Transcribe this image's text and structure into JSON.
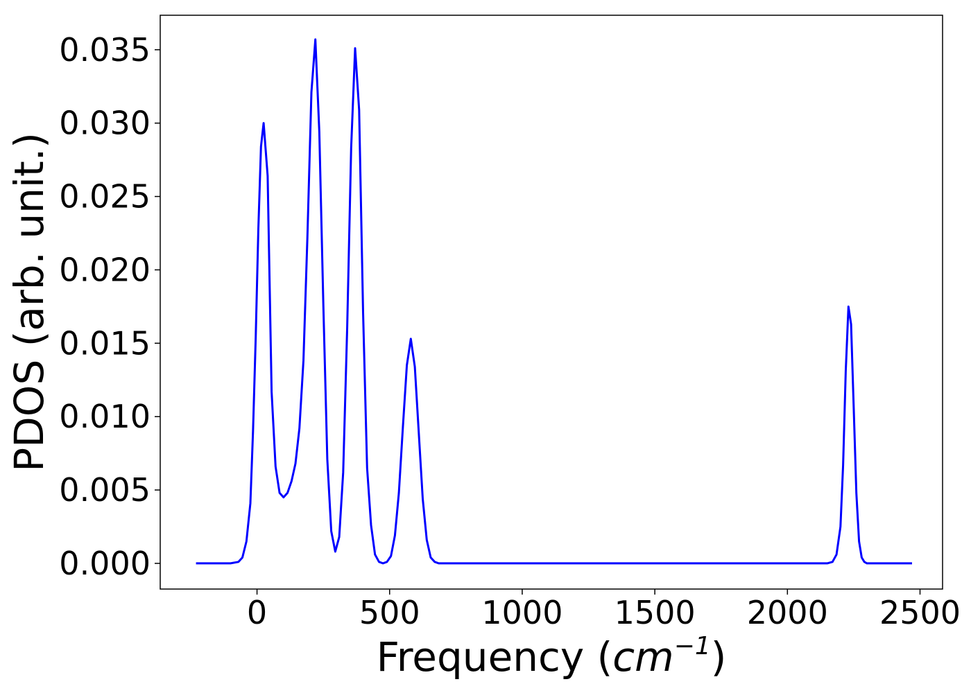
{
  "chart_data": {
    "type": "line",
    "xlabel_prefix": "Frequency (",
    "xlabel_unit": "cm",
    "xlabel_exp": "−1",
    "xlabel_suffix": ")",
    "ylabel": "PDOS (arb. unit.)",
    "xlim": [
      -365,
      2585
    ],
    "ylim": [
      -0.00175,
      0.03735
    ],
    "xticks": [
      0,
      500,
      1000,
      1500,
      2000,
      2500
    ],
    "xtick_labels": [
      "0",
      "500",
      "1000",
      "1500",
      "2000",
      "2500"
    ],
    "yticks": [
      0.0,
      0.005,
      0.01,
      0.015,
      0.02,
      0.025,
      0.03,
      0.035
    ],
    "ytick_labels": [
      "0.000",
      "0.005",
      "0.010",
      "0.015",
      "0.020",
      "0.025",
      "0.030",
      "0.035"
    ],
    "grid": false,
    "series": [
      {
        "color": "#0000ff",
        "x": [
          -230,
          -200,
          -150,
          -100,
          -70,
          -55,
          -40,
          -25,
          -15,
          -5,
          5,
          15,
          25,
          40,
          55,
          70,
          85,
          100,
          115,
          130,
          145,
          160,
          175,
          190,
          205,
          220,
          235,
          250,
          265,
          280,
          295,
          310,
          325,
          340,
          355,
          370,
          385,
          400,
          415,
          430,
          445,
          460,
          475,
          490,
          505,
          520,
          535,
          550,
          565,
          580,
          595,
          610,
          625,
          640,
          655,
          670,
          685,
          700,
          1000,
          1500,
          2000,
          2150,
          2170,
          2185,
          2200,
          2210,
          2220,
          2230,
          2240,
          2250,
          2260,
          2270,
          2280,
          2290,
          2300,
          2315,
          2330,
          2350,
          2470
        ],
        "y": [
          0.0,
          0.0,
          0.0,
          0.0,
          0.0001,
          0.0004,
          0.0015,
          0.0041,
          0.009,
          0.0154,
          0.0228,
          0.0284,
          0.03,
          0.0264,
          0.0117,
          0.0066,
          0.0048,
          0.0045,
          0.0048,
          0.0056,
          0.0068,
          0.0092,
          0.0138,
          0.0222,
          0.0321,
          0.0357,
          0.0294,
          0.0176,
          0.0071,
          0.0022,
          0.0008,
          0.0018,
          0.0062,
          0.0161,
          0.0283,
          0.0351,
          0.0309,
          0.0171,
          0.0065,
          0.0026,
          0.0006,
          0.0001,
          0.0,
          0.0001,
          0.0005,
          0.0019,
          0.0048,
          0.0093,
          0.0135,
          0.0153,
          0.0134,
          0.0089,
          0.0044,
          0.0016,
          0.0004,
          0.0001,
          0.0,
          0.0,
          0.0,
          0.0,
          0.0,
          0.0,
          0.0001,
          0.0006,
          0.0025,
          0.0067,
          0.0131,
          0.0175,
          0.0163,
          0.0106,
          0.0048,
          0.0015,
          0.0004,
          0.0001,
          0.0,
          0.0,
          0.0,
          0.0,
          0.0
        ]
      }
    ]
  }
}
